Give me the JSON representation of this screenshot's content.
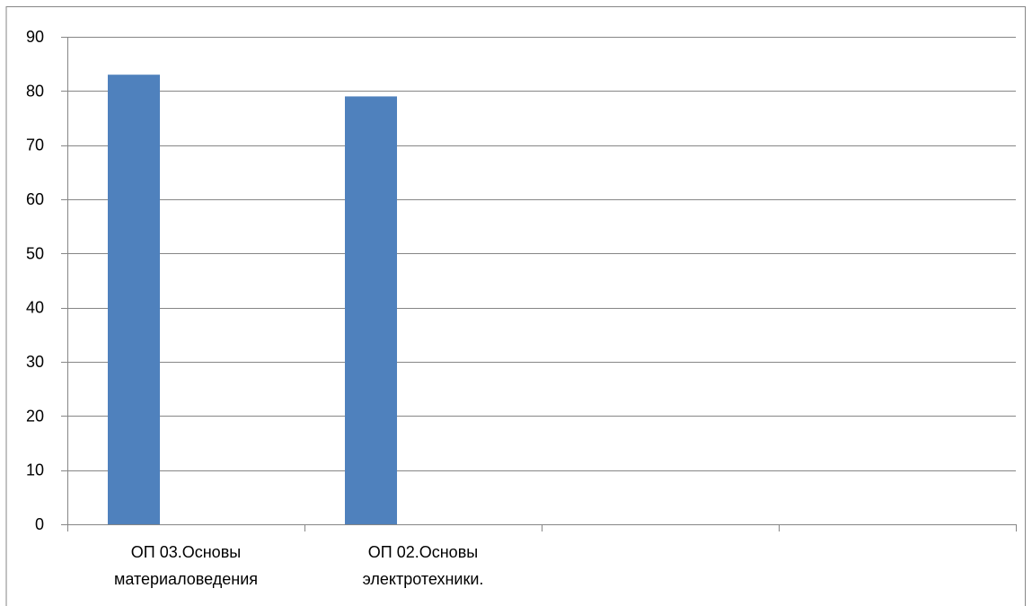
{
  "chart_data": {
    "type": "bar",
    "categories": [
      [
        "ОП 03.Основы",
        "материаловедения"
      ],
      [
        "ОП 02.Основы",
        "электротехники."
      ],
      [],
      []
    ],
    "values": [
      83,
      79,
      null,
      null
    ],
    "ylim": [
      0,
      90
    ],
    "yticks": [
      0,
      10,
      20,
      30,
      40,
      50,
      60,
      70,
      80,
      90
    ],
    "grid": true,
    "legend": "none",
    "colors": {
      "bar": "#4f81bd",
      "grid": "#868686",
      "axis": "#868686",
      "frame": "#868686",
      "text": "#000000"
    }
  }
}
